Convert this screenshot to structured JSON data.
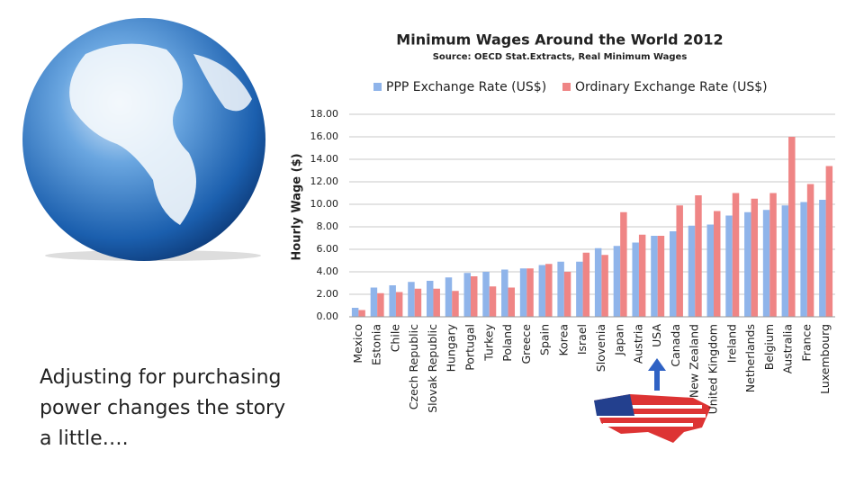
{
  "chart_data": {
    "type": "bar",
    "title": "Minimum Wages Around the World 2012",
    "subtitle": "Source: OECD Stat.Extracts, Real Minimum Wages",
    "y_label": "Hourly Wage ($)",
    "categories": [
      "Mexico",
      "Estonia",
      "Chile",
      "Czech Republic",
      "Slovak Republic",
      "Hungary",
      "Portugal",
      "Turkey",
      "Poland",
      "Greece",
      "Spain",
      "Korea",
      "Israel",
      "Slovenia",
      "Japan",
      "Austria",
      "USA",
      "Canada",
      "New Zealand",
      "United Kingdom",
      "Ireland",
      "Netherlands",
      "Belgium",
      "Australia",
      "France",
      "Luxembourg"
    ],
    "series": [
      {
        "name": "PPP Exchange Rate (US$)",
        "color": "#8fb4ea",
        "values": [
          0.8,
          2.6,
          2.8,
          3.1,
          3.2,
          3.5,
          3.9,
          4.0,
          4.2,
          4.3,
          4.6,
          4.9,
          4.9,
          6.1,
          6.3,
          6.6,
          7.2,
          7.6,
          8.1,
          8.2,
          9.0,
          9.3,
          9.5,
          9.9,
          10.2,
          10.4
        ]
      },
      {
        "name": "Ordinary Exchange Rate (US$)",
        "color": "#ef8585",
        "values": [
          0.6,
          2.1,
          2.2,
          2.5,
          2.5,
          2.3,
          3.6,
          2.7,
          2.6,
          4.3,
          4.7,
          4.0,
          5.7,
          5.5,
          9.3,
          7.3,
          7.2,
          9.9,
          10.8,
          9.4,
          11.0,
          10.5,
          11.0,
          16.0,
          11.8,
          13.4
        ]
      }
    ],
    "ylim": [
      0,
      18
    ],
    "yticks": [
      {
        "value": 0,
        "label": "0.00"
      },
      {
        "value": 2,
        "label": "2.00"
      },
      {
        "value": 4,
        "label": "4.00"
      },
      {
        "value": 6,
        "label": "6.00"
      },
      {
        "value": 8,
        "label": "8.00"
      },
      {
        "value": 10,
        "label": "10.00"
      },
      {
        "value": 12,
        "label": "12.00"
      },
      {
        "value": 14,
        "label": "14.00"
      },
      {
        "value": 16,
        "label": "16.00"
      },
      {
        "value": 18,
        "label": "18.00"
      }
    ],
    "grid": true,
    "legend": "top"
  },
  "caption": [
    "Adjusting for purchasing",
    "power changes the story",
    "a little…."
  ]
}
